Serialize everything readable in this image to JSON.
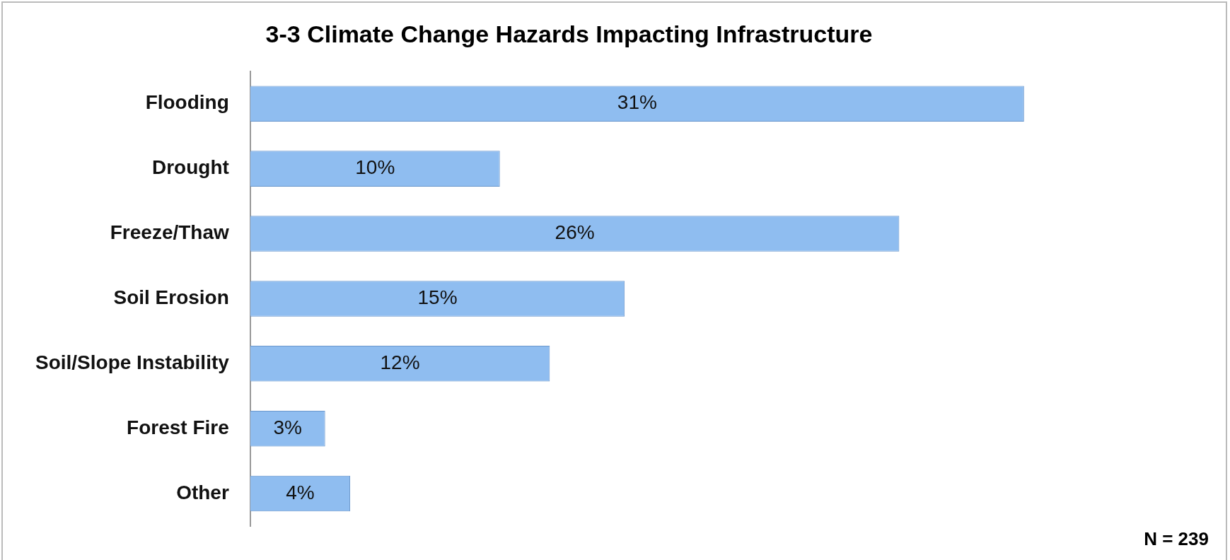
{
  "chart_data": {
    "type": "bar",
    "orientation": "horizontal",
    "title": "3-3 Climate Change Hazards Impacting Infrastructure",
    "categories": [
      "Flooding",
      "Drought",
      "Freeze/Thaw",
      "Soil Erosion",
      "Soil/Slope Instability",
      "Forest Fire",
      "Other"
    ],
    "values": [
      31,
      10,
      26,
      15,
      12,
      3,
      4
    ],
    "value_labels": [
      "31%",
      "10%",
      "26%",
      "15%",
      "12%",
      "3%",
      "4%"
    ],
    "color": "#8fbdf0",
    "annotations": [
      "N = 239"
    ]
  }
}
